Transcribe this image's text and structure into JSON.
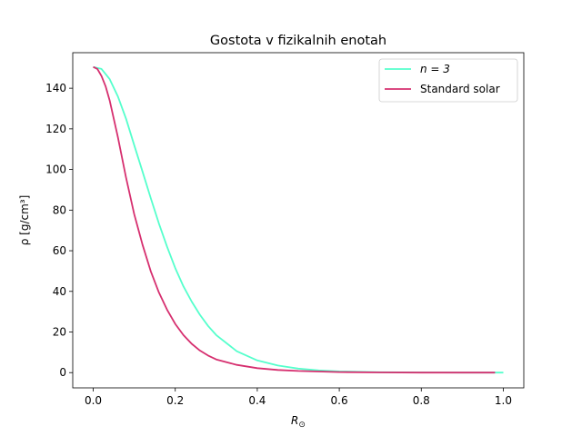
{
  "chart_data": {
    "type": "line",
    "title": "Gostota v fizikalnih enotah",
    "xlabel": "R",
    "xlabel_subscript": "⊙",
    "ylabel": "ρ [g/cm³]",
    "xlim": [
      -0.05,
      1.05
    ],
    "ylim": [
      -7.5,
      157.5
    ],
    "x_ticks": [
      0.0,
      0.2,
      0.4,
      0.6,
      0.8,
      1.0
    ],
    "x_tick_labels": [
      "0.0",
      "0.2",
      "0.4",
      "0.6",
      "0.8",
      "1.0"
    ],
    "y_ticks": [
      0,
      20,
      40,
      60,
      80,
      100,
      120,
      140
    ],
    "y_tick_labels": [
      "0",
      "20",
      "40",
      "60",
      "80",
      "100",
      "120",
      "140"
    ],
    "grid": false,
    "legend_position": "top-right",
    "series": [
      {
        "name": "n = 3",
        "color": "#55ffcc",
        "x": [
          0.0,
          0.02,
          0.04,
          0.06,
          0.08,
          0.1,
          0.12,
          0.14,
          0.16,
          0.18,
          0.2,
          0.22,
          0.24,
          0.26,
          0.28,
          0.3,
          0.35,
          0.4,
          0.45,
          0.5,
          0.55,
          0.6,
          0.7,
          0.8,
          0.9,
          1.0
        ],
        "values": [
          150.5,
          149.5,
          144.5,
          136.0,
          125.0,
          112.0,
          99.0,
          86.0,
          73.5,
          62.0,
          51.5,
          42.5,
          35.0,
          28.5,
          23.0,
          18.5,
          10.5,
          6.0,
          3.5,
          2.0,
          1.1,
          0.6,
          0.2,
          0.1,
          0.0,
          0.0
        ]
      },
      {
        "name": "Standard solar",
        "color": "#d62f6f",
        "x": [
          0.0,
          0.01,
          0.02,
          0.03,
          0.04,
          0.06,
          0.08,
          0.1,
          0.12,
          0.14,
          0.16,
          0.18,
          0.2,
          0.22,
          0.24,
          0.26,
          0.28,
          0.3,
          0.35,
          0.4,
          0.45,
          0.5,
          0.6,
          0.7,
          0.8,
          0.9,
          0.98
        ],
        "values": [
          150.5,
          149.5,
          146.0,
          141.0,
          134.0,
          116.0,
          96.0,
          78.0,
          63.0,
          50.0,
          39.5,
          31.0,
          24.0,
          18.5,
          14.2,
          10.9,
          8.4,
          6.5,
          3.8,
          2.2,
          1.3,
          0.8,
          0.3,
          0.1,
          0.0,
          0.0,
          0.0
        ]
      }
    ]
  }
}
